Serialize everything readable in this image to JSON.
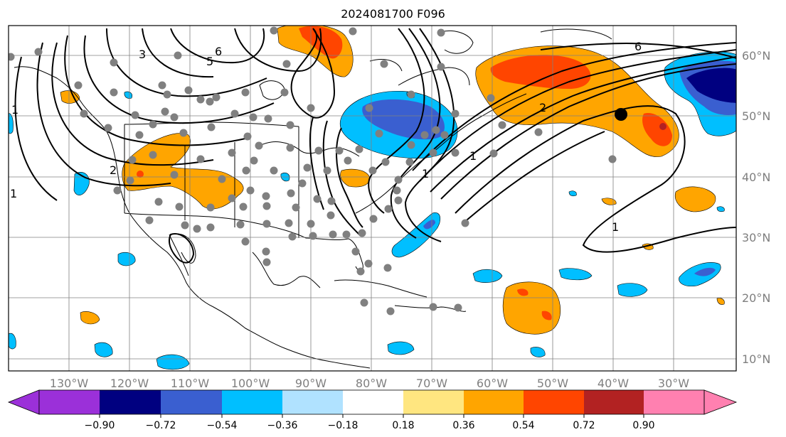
{
  "title": "2024081700 F096",
  "map": {
    "lon_labels": [
      "130°W",
      "120°W",
      "110°W",
      "100°W",
      "90°W",
      "80°W",
      "70°W",
      "60°W",
      "50°W",
      "40°W",
      "30°W"
    ],
    "lat_labels": [
      "60°N",
      "50°N",
      "40°N",
      "30°N",
      "20°N",
      "10°N"
    ],
    "contour_labels": [
      "6",
      "2",
      "1",
      "1",
      "3",
      "5",
      "6",
      "2",
      "1",
      "1",
      "1"
    ],
    "colors": {
      "neg_extreme": "#9b30d9",
      "neg_090": "#000080",
      "neg_072": "#3a5fd0",
      "neg_054": "#00bfff",
      "neg_036": "#b0e2ff",
      "neutral": "#ffffff",
      "pos_018": "#ffe680",
      "pos_036": "#ffa500",
      "pos_054": "#ff4500",
      "pos_072": "#b22222",
      "pos_extreme": "#ff80b0"
    }
  },
  "colorbar": {
    "ticks": [
      "−0.90",
      "−0.72",
      "−0.54",
      "−0.36",
      "−0.18",
      "0.18",
      "0.36",
      "0.54",
      "0.72",
      "0.90"
    ]
  }
}
